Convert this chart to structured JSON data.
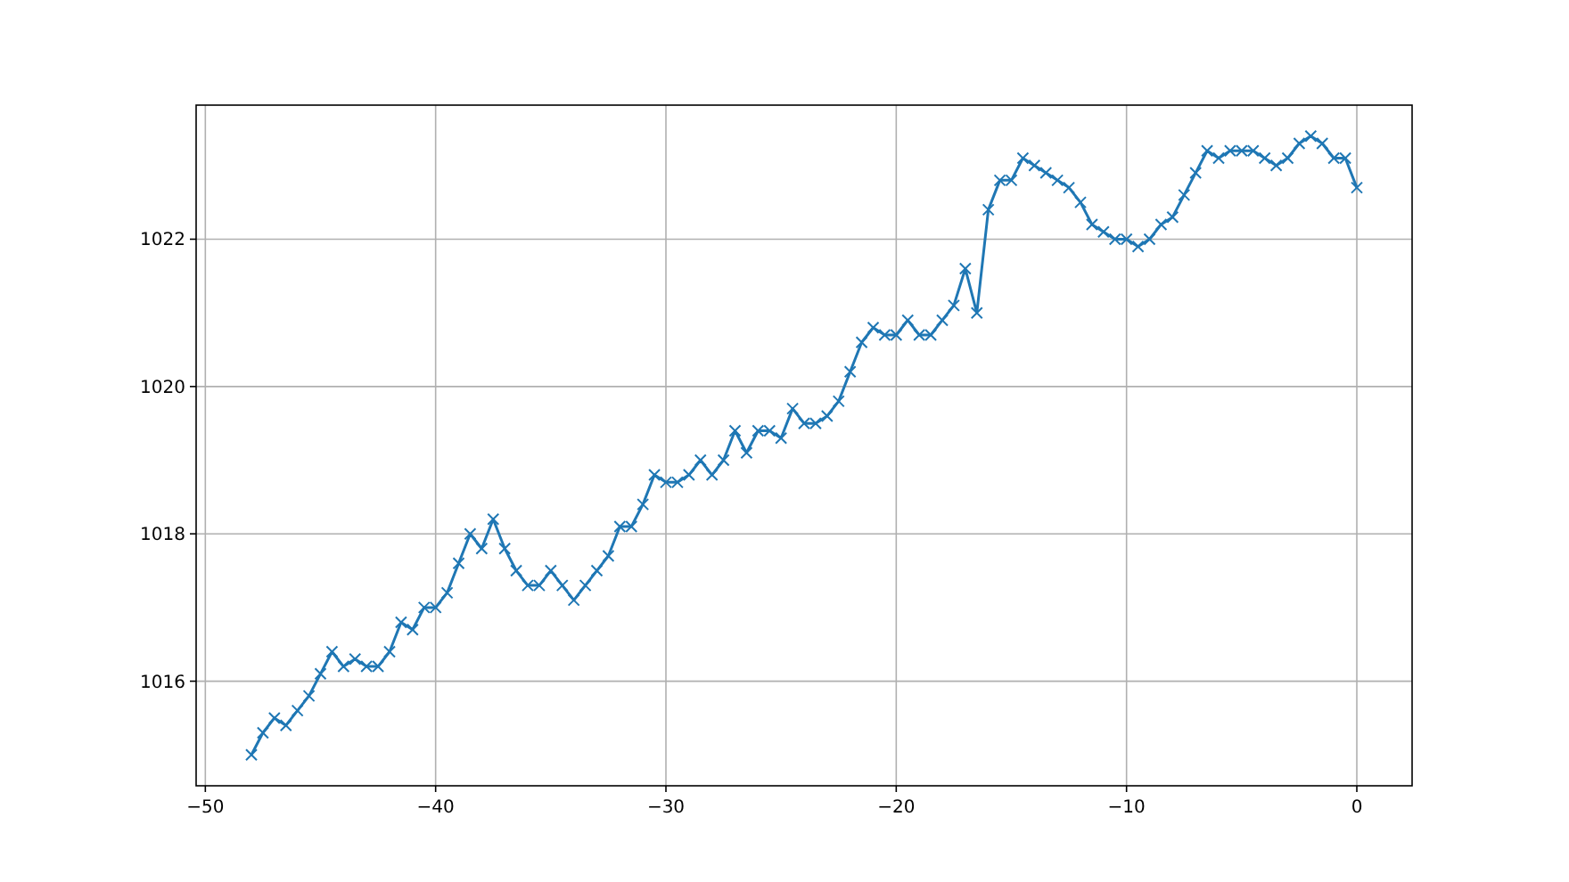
{
  "chart_data": {
    "type": "line",
    "x": [
      -48,
      -47.5,
      -47,
      -46.5,
      -46,
      -45.5,
      -45,
      -44.5,
      -44,
      -43.5,
      -43,
      -42.5,
      -42,
      -41.5,
      -41,
      -40.5,
      -40,
      -39.5,
      -39,
      -38.5,
      -38,
      -37.5,
      -37,
      -36.5,
      -36,
      -35.5,
      -35,
      -34.5,
      -34,
      -33.5,
      -33,
      -32.5,
      -32,
      -31.5,
      -31,
      -30.5,
      -30,
      -29.5,
      -29,
      -28.5,
      -28,
      -27.5,
      -27,
      -26.5,
      -26,
      -25.5,
      -25,
      -24.5,
      -24,
      -23.5,
      -23,
      -22.5,
      -22,
      -21.5,
      -21,
      -20.5,
      -20,
      -19.5,
      -19,
      -18.5,
      -18,
      -17.5,
      -17,
      -16.5,
      -16,
      -15.5,
      -15,
      -14.5,
      -14,
      -13.5,
      -13,
      -12.5,
      -12,
      -11.5,
      -11,
      -10.5,
      -10,
      -9.5,
      -9,
      -8.5,
      -8,
      -7.5,
      -7,
      -6.5,
      -6,
      -5.5,
      -5,
      -4.5,
      -4,
      -3.5,
      -3,
      -2.5,
      -2,
      -1.5,
      -1,
      -0.5,
      0
    ],
    "series": [
      {
        "color": "#1f77b4",
        "values": [
          1015.0,
          1015.3,
          1015.5,
          1015.4,
          1015.6,
          1015.8,
          1016.1,
          1016.4,
          1016.2,
          1016.3,
          1016.2,
          1016.2,
          1016.4,
          1016.8,
          1016.7,
          1017.0,
          1017.0,
          1017.2,
          1017.6,
          1018.0,
          1017.8,
          1018.2,
          1017.8,
          1017.5,
          1017.3,
          1017.3,
          1017.5,
          1017.3,
          1017.1,
          1017.3,
          1017.5,
          1017.7,
          1018.1,
          1018.1,
          1018.4,
          1018.8,
          1018.7,
          1018.7,
          1018.8,
          1019.0,
          1018.8,
          1019.0,
          1019.4,
          1019.1,
          1019.4,
          1019.4,
          1019.3,
          1019.7,
          1019.5,
          1019.5,
          1019.6,
          1019.8,
          1020.2,
          1020.6,
          1020.8,
          1020.7,
          1020.7,
          1020.9,
          1020.7,
          1020.7,
          1020.9,
          1021.1,
          1021.6,
          1021.0,
          1022.4,
          1022.8,
          1022.8,
          1023.1,
          1023.0,
          1022.9,
          1022.8,
          1022.7,
          1022.5,
          1022.2,
          1022.1,
          1022.0,
          1022.0,
          1021.9,
          1022.0,
          1022.2,
          1022.3,
          1022.6,
          1022.9,
          1023.2,
          1023.1,
          1023.2,
          1023.2,
          1023.2,
          1023.1,
          1023.0,
          1023.1,
          1023.3,
          1023.4,
          1023.3,
          1023.1,
          1023.1,
          1022.7
        ]
      }
    ],
    "xlim": [
      -50.4,
      2.4
    ],
    "xticks": [
      -50,
      -40,
      -30,
      -20,
      -10,
      0
    ],
    "ylim": [
      1014.58,
      1023.82
    ],
    "yticks": [
      1016,
      1018,
      1020,
      1022
    ],
    "grid": true,
    "marker": "cross",
    "line_style": "solid"
  }
}
